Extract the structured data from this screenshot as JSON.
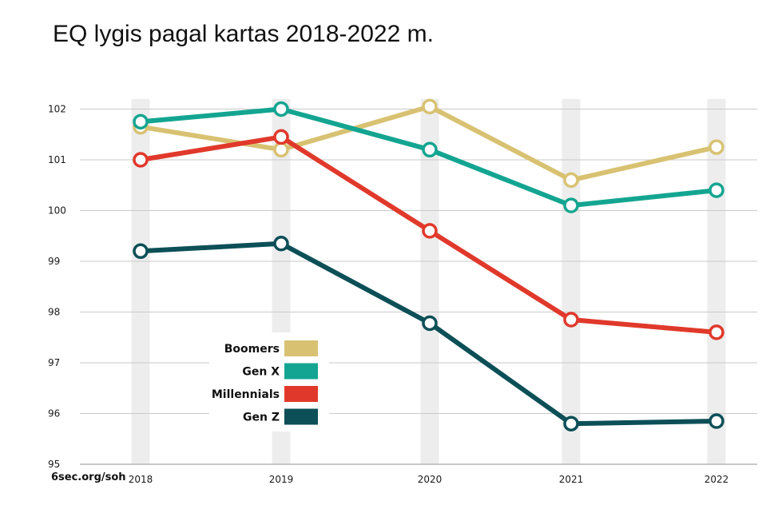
{
  "chart_data": {
    "type": "line",
    "title": "EQ lygis pagal kartas 2018-2022 m.",
    "source": "6sec.org/soh",
    "x": [
      "2018",
      "2019",
      "2020",
      "2021",
      "2022"
    ],
    "ylim": [
      95,
      102.2
    ],
    "yticks": [
      "95",
      "96",
      "97",
      "98",
      "99",
      "100",
      "101",
      "102"
    ],
    "grid": true,
    "legend_position": "center-left",
    "series": [
      {
        "name": "Boomers",
        "color": "#D8C272",
        "values": [
          101.65,
          101.2,
          102.05,
          100.6,
          101.25
        ]
      },
      {
        "name": "Gen X",
        "color": "#13A591",
        "values": [
          101.75,
          102.0,
          101.2,
          100.1,
          100.4
        ]
      },
      {
        "name": "Millennials",
        "color": "#E0392B",
        "values": [
          101.0,
          101.45,
          99.6,
          97.85,
          97.6
        ]
      },
      {
        "name": "Gen Z",
        "color": "#0C4F57",
        "values": [
          99.2,
          99.35,
          97.78,
          95.8,
          95.85
        ]
      }
    ]
  }
}
